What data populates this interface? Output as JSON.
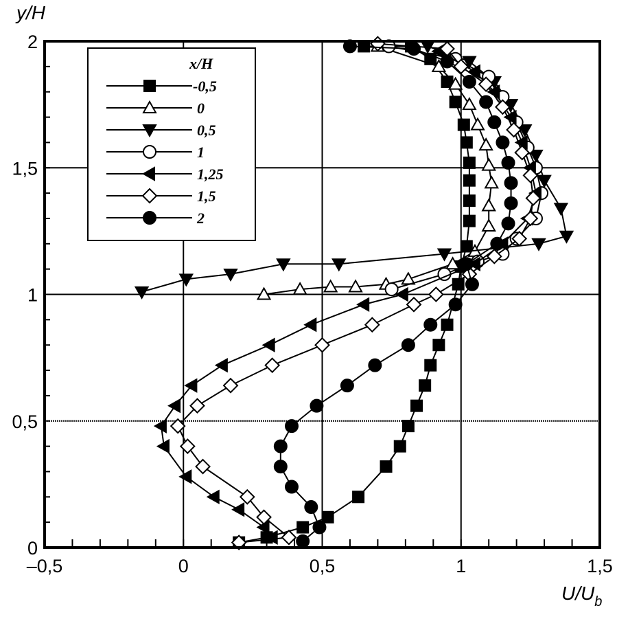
{
  "chart_data": {
    "type": "line",
    "title": "",
    "xlabel": "U/U",
    "xlabel_sub": "b",
    "ylabel": "y/H",
    "xlim": [
      -0.5,
      1.5
    ],
    "ylim": [
      0,
      2
    ],
    "xticks": [
      -0.5,
      0,
      0.5,
      1,
      1.5
    ],
    "xtick_labels": [
      "–0,5",
      "0",
      "0,5",
      "1",
      "1,5"
    ],
    "yticks": [
      0,
      0.5,
      1,
      1.5,
      2
    ],
    "ytick_labels": [
      "0",
      "0,5",
      "1",
      "1,5",
      "2"
    ],
    "grid": true,
    "legend_title": "x/H",
    "legend_position": "top-left",
    "series": [
      {
        "name": "-0,5",
        "marker": "square-filled",
        "x": [
          0.2,
          0.3,
          0.43,
          0.52,
          0.63,
          0.73,
          0.78,
          0.81,
          0.84,
          0.87,
          0.89,
          0.92,
          0.95,
          0.99,
          1.0,
          1.02,
          1.03,
          1.03,
          1.03,
          1.03,
          1.02,
          1.01,
          0.98,
          0.95,
          0.89,
          0.82,
          0.65
        ],
        "y": [
          0.02,
          0.04,
          0.08,
          0.12,
          0.2,
          0.32,
          0.4,
          0.48,
          0.56,
          0.64,
          0.72,
          0.8,
          0.88,
          1.04,
          1.11,
          1.19,
          1.29,
          1.37,
          1.45,
          1.52,
          1.6,
          1.67,
          1.76,
          1.84,
          1.93,
          1.98,
          1.98
        ]
      },
      {
        "name": "0",
        "marker": "triangle-up-open",
        "x": [
          0.29,
          0.42,
          0.53,
          0.62,
          0.73,
          0.81,
          0.97,
          1.05,
          1.1,
          1.1,
          1.11,
          1.1,
          1.09,
          1.06,
          1.03,
          0.98,
          0.92,
          0.7
        ],
        "y": [
          1.0,
          1.02,
          1.03,
          1.03,
          1.04,
          1.06,
          1.12,
          1.17,
          1.27,
          1.35,
          1.44,
          1.51,
          1.59,
          1.67,
          1.75,
          1.83,
          1.9,
          1.98
        ]
      },
      {
        "name": "0,5",
        "marker": "triangle-down-filled",
        "x": [
          -0.15,
          0.01,
          0.17,
          0.36,
          0.56,
          0.94,
          1.28,
          1.38,
          1.36,
          1.3,
          1.27,
          1.23,
          1.18,
          1.12,
          1.03,
          0.88
        ],
        "y": [
          1.01,
          1.06,
          1.08,
          1.12,
          1.12,
          1.16,
          1.2,
          1.23,
          1.34,
          1.45,
          1.55,
          1.65,
          1.75,
          1.84,
          1.92,
          1.98
        ]
      },
      {
        "name": "1",
        "marker": "circle-open",
        "x": [
          0.75,
          0.94,
          1.06,
          1.15,
          1.2,
          1.27,
          1.29,
          1.27,
          1.24,
          1.2,
          1.15,
          1.1,
          0.98,
          0.74
        ],
        "y": [
          1.02,
          1.08,
          1.13,
          1.16,
          1.22,
          1.3,
          1.4,
          1.5,
          1.58,
          1.68,
          1.78,
          1.86,
          1.93,
          1.98
        ]
      },
      {
        "name": "1,25",
        "marker": "triangle-left-filled",
        "x": [
          0.32,
          0.29,
          0.2,
          0.11,
          0.01,
          -0.07,
          -0.08,
          -0.03,
          0.03,
          0.14,
          0.31,
          0.46,
          0.65,
          0.79,
          1.05,
          1.15,
          1.24,
          1.27,
          1.25,
          1.22,
          1.18,
          1.12,
          1.05,
          0.92
        ],
        "y": [
          0.04,
          0.08,
          0.15,
          0.2,
          0.28,
          0.4,
          0.48,
          0.56,
          0.64,
          0.72,
          0.8,
          0.88,
          0.96,
          1.0,
          1.12,
          1.2,
          1.3,
          1.4,
          1.5,
          1.6,
          1.7,
          1.8,
          1.88,
          1.96
        ]
      },
      {
        "name": "1,5",
        "marker": "diamond-open",
        "x": [
          0.2,
          0.38,
          0.29,
          0.23,
          0.07,
          0.015,
          -0.02,
          0.05,
          0.17,
          0.32,
          0.5,
          0.68,
          0.83,
          0.91,
          1.03,
          1.12,
          1.21,
          1.25,
          1.26,
          1.25,
          1.22,
          1.19,
          1.15,
          1.09,
          1.0,
          0.95,
          0.7
        ],
        "y": [
          0.02,
          0.04,
          0.12,
          0.2,
          0.32,
          0.4,
          0.48,
          0.56,
          0.64,
          0.72,
          0.8,
          0.88,
          0.96,
          1.0,
          1.08,
          1.15,
          1.22,
          1.3,
          1.38,
          1.47,
          1.56,
          1.65,
          1.74,
          1.83,
          1.9,
          1.97,
          1.99
        ]
      },
      {
        "name": "2",
        "marker": "circle-filled",
        "x": [
          0.43,
          0.49,
          0.46,
          0.39,
          0.35,
          0.35,
          0.39,
          0.48,
          0.59,
          0.69,
          0.81,
          0.89,
          0.98,
          1.04,
          1.02,
          1.13,
          1.17,
          1.18,
          1.18,
          1.17,
          1.15,
          1.12,
          1.09,
          1.03,
          0.95,
          0.83,
          0.6
        ],
        "y": [
          0.025,
          0.08,
          0.16,
          0.24,
          0.32,
          0.4,
          0.48,
          0.56,
          0.64,
          0.72,
          0.8,
          0.88,
          0.96,
          1.04,
          1.12,
          1.2,
          1.28,
          1.36,
          1.44,
          1.52,
          1.6,
          1.68,
          1.76,
          1.84,
          1.92,
          1.97,
          1.98
        ]
      }
    ]
  }
}
